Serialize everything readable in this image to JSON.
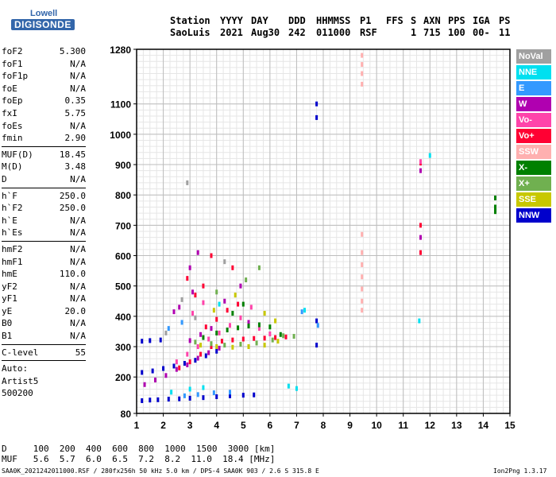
{
  "logo": {
    "line1": "Lowell",
    "line2": "DIGISONDE"
  },
  "header": {
    "col1_label": "Station",
    "col1_value": "SaoLuis",
    "col2_label": "YYYY",
    "col2_value": "2021",
    "col3_label": "DAY",
    "col3_value": "Aug30",
    "col4_label": "DDD",
    "col4_value": "242",
    "col5_label": "HHMMSS",
    "col5_value": "011000",
    "col6_label": "P1",
    "col6_value": "RSF",
    "col7_label": "FFS",
    "col7_value": "",
    "col8_label": "S",
    "col8_value": "1",
    "col9_label": "AXN",
    "col9_value": "715",
    "col10_label": "PPS",
    "col10_value": "100",
    "col11_label": "IGA",
    "col11_value": "00-",
    "col12_label": "PS",
    "col12_value": "11"
  },
  "params": {
    "group1": [
      {
        "name": "foF2",
        "value": "5.300"
      },
      {
        "name": "foF1",
        "value": "N/A"
      },
      {
        "name": "foF1p",
        "value": "N/A"
      },
      {
        "name": "foE",
        "value": "N/A"
      },
      {
        "name": "foEp",
        "value": "0.35"
      },
      {
        "name": "fxI",
        "value": "5.75"
      },
      {
        "name": "foEs",
        "value": "N/A"
      },
      {
        "name": "fmin",
        "value": "2.90"
      }
    ],
    "group2": [
      {
        "name": "MUF(D)",
        "value": "18.45"
      },
      {
        "name": "M(D)",
        "value": "3.48"
      },
      {
        "name": "D",
        "value": "N/A"
      }
    ],
    "group3": [
      {
        "name": "h`F",
        "value": "250.0"
      },
      {
        "name": "h`F2",
        "value": "250.0"
      },
      {
        "name": "h`E",
        "value": "N/A"
      },
      {
        "name": "h`Es",
        "value": "N/A"
      }
    ],
    "group4": [
      {
        "name": "hmF2",
        "value": "N/A"
      },
      {
        "name": "hmF1",
        "value": "N/A"
      },
      {
        "name": "hmE",
        "value": "110.0"
      },
      {
        "name": "yF2",
        "value": "N/A"
      },
      {
        "name": "yF1",
        "value": "N/A"
      },
      {
        "name": "yE",
        "value": "20.0"
      },
      {
        "name": "B0",
        "value": "N/A"
      },
      {
        "name": "B1",
        "value": "N/A"
      }
    ],
    "clevel": {
      "name": "C-level",
      "value": "55"
    },
    "auto_lines": [
      "Auto:",
      "Artist5",
      "500200"
    ]
  },
  "legend": [
    {
      "label": "NoVal",
      "color": "#a0a0a0"
    },
    {
      "label": "NNE",
      "color": "#00e0f0"
    },
    {
      "label": "E",
      "color": "#3399ff"
    },
    {
      "label": "W",
      "color": "#b000b0"
    },
    {
      "label": "Vo-",
      "color": "#ff44aa"
    },
    {
      "label": "Vo+",
      "color": "#ff0033"
    },
    {
      "label": "SSW",
      "color": "#ffb0b0"
    },
    {
      "label": "X-",
      "color": "#008000"
    },
    {
      "label": "X+",
      "color": "#70b050"
    },
    {
      "label": "SSE",
      "color": "#c8c800"
    },
    {
      "label": "NNW",
      "color": "#0000cc"
    }
  ],
  "bottom": {
    "d_line": "D     100  200  400  600  800  1000  1500  3000 [km]",
    "muf_line": "MUF   5.6  5.7  6.0  6.5  7.2  8.2  11.0  18.4 [MHz]"
  },
  "footer": {
    "left": "SAA0K_2021242011000.RSF / 280fx256h 50 kHz 5.0 km / DPS-4 SAA0K 903 / 2.6 S 315.8 E",
    "right": "Ion2Png 1.3.17"
  },
  "chart_data": {
    "type": "scatter",
    "xlim": [
      1,
      15
    ],
    "ylim": [
      80,
      1280
    ],
    "xticks": [
      1,
      2,
      3,
      4,
      5,
      6,
      7,
      8,
      9,
      10,
      11,
      12,
      13,
      14,
      15
    ],
    "yticks": [
      80,
      200,
      300,
      400,
      500,
      600,
      700,
      800,
      900,
      1000,
      1100,
      1280
    ],
    "grid": true,
    "series": [
      {
        "color": "#0000cc",
        "points": [
          [
            1.2,
            122
          ],
          [
            1.5,
            124
          ],
          [
            1.8,
            125
          ],
          [
            2.2,
            127
          ],
          [
            2.6,
            128
          ],
          [
            3.0,
            130
          ],
          [
            3.5,
            132
          ],
          [
            4.0,
            135
          ],
          [
            4.5,
            138
          ],
          [
            5.0,
            140
          ],
          [
            5.4,
            141
          ],
          [
            1.2,
            215
          ],
          [
            1.6,
            220
          ],
          [
            2.0,
            228
          ],
          [
            2.4,
            236
          ],
          [
            2.8,
            245
          ],
          [
            3.2,
            255
          ],
          [
            3.6,
            270
          ],
          [
            4.0,
            285
          ],
          [
            1.2,
            318
          ],
          [
            1.5,
            320
          ],
          [
            1.9,
            322
          ],
          [
            7.75,
            1100
          ],
          [
            7.75,
            1055
          ],
          [
            7.75,
            385
          ],
          [
            7.75,
            305
          ]
        ]
      },
      {
        "color": "#b000b0",
        "points": [
          [
            1.3,
            175
          ],
          [
            1.7,
            190
          ],
          [
            2.1,
            205
          ],
          [
            2.5,
            225
          ],
          [
            2.9,
            240
          ],
          [
            3.3,
            262
          ],
          [
            3.7,
            280
          ],
          [
            4.1,
            295
          ],
          [
            3.0,
            320
          ],
          [
            3.4,
            340
          ],
          [
            3.8,
            360
          ],
          [
            2.4,
            415
          ],
          [
            2.6,
            430
          ],
          [
            3.1,
            480
          ],
          [
            3.0,
            560
          ],
          [
            3.3,
            610
          ],
          [
            4.9,
            500
          ],
          [
            4.3,
            450
          ],
          [
            5.2,
            380
          ],
          [
            11.65,
            880
          ],
          [
            11.65,
            660
          ]
        ]
      },
      {
        "color": "#ff0033",
        "points": [
          [
            2.6,
            230
          ],
          [
            3.0,
            250
          ],
          [
            3.4,
            275
          ],
          [
            3.8,
            300
          ],
          [
            4.2,
            318
          ],
          [
            4.6,
            322
          ],
          [
            5.0,
            325
          ],
          [
            5.4,
            327
          ],
          [
            5.8,
            328
          ],
          [
            6.2,
            330
          ],
          [
            6.6,
            332
          ],
          [
            3.6,
            365
          ],
          [
            4.0,
            390
          ],
          [
            4.4,
            420
          ],
          [
            4.8,
            440
          ],
          [
            3.2,
            470
          ],
          [
            3.5,
            500
          ],
          [
            2.9,
            525
          ],
          [
            4.6,
            560
          ],
          [
            3.8,
            600
          ],
          [
            11.65,
            905
          ],
          [
            11.65,
            700
          ],
          [
            11.65,
            610
          ]
        ]
      },
      {
        "color": "#ff44aa",
        "points": [
          [
            2.5,
            250
          ],
          [
            2.9,
            275
          ],
          [
            3.3,
            300
          ],
          [
            3.7,
            325
          ],
          [
            4.1,
            345
          ],
          [
            4.5,
            370
          ],
          [
            4.9,
            395
          ],
          [
            5.3,
            430
          ],
          [
            3.1,
            410
          ],
          [
            3.5,
            445
          ],
          [
            5.6,
            360
          ],
          [
            6.0,
            342
          ],
          [
            11.65,
            910
          ]
        ]
      },
      {
        "color": "#008000",
        "points": [
          [
            3.5,
            330
          ],
          [
            4.0,
            345
          ],
          [
            4.4,
            355
          ],
          [
            4.8,
            362
          ],
          [
            5.2,
            368
          ],
          [
            5.6,
            372
          ],
          [
            6.0,
            365
          ],
          [
            6.4,
            340
          ],
          [
            4.6,
            410
          ],
          [
            5.0,
            440
          ],
          [
            14.45,
            790
          ],
          [
            14.45,
            760
          ],
          [
            14.45,
            745
          ]
        ]
      },
      {
        "color": "#70b050",
        "points": [
          [
            3.2,
            315
          ],
          [
            3.8,
            310
          ],
          [
            4.3,
            305
          ],
          [
            4.9,
            308
          ],
          [
            5.5,
            312
          ],
          [
            6.1,
            322
          ],
          [
            6.5,
            336
          ],
          [
            6.9,
            334
          ],
          [
            4.0,
            480
          ],
          [
            5.1,
            520
          ],
          [
            5.6,
            560
          ]
        ]
      },
      {
        "color": "#c8c800",
        "points": [
          [
            3.4,
            305
          ],
          [
            4.0,
            300
          ],
          [
            4.6,
            298
          ],
          [
            5.2,
            300
          ],
          [
            5.8,
            305
          ],
          [
            6.3,
            318
          ],
          [
            3.9,
            420
          ],
          [
            4.7,
            470
          ],
          [
            5.8,
            410
          ],
          [
            6.2,
            385
          ]
        ]
      },
      {
        "color": "#00e0f0",
        "points": [
          [
            2.3,
            150
          ],
          [
            3.0,
            160
          ],
          [
            3.5,
            165
          ],
          [
            6.7,
            170
          ],
          [
            7.0,
            162
          ],
          [
            7.3,
            420
          ],
          [
            12.0,
            930
          ],
          [
            11.6,
            385
          ],
          [
            4.1,
            440
          ]
        ]
      },
      {
        "color": "#3399ff",
        "points": [
          [
            2.8,
            138
          ],
          [
            3.3,
            142
          ],
          [
            3.9,
            148
          ],
          [
            4.5,
            150
          ],
          [
            2.2,
            360
          ],
          [
            2.7,
            380
          ],
          [
            7.2,
            415
          ],
          [
            7.8,
            370
          ]
        ]
      },
      {
        "color": "#ffb0b0",
        "points": [
          [
            9.45,
            1260
          ],
          [
            9.45,
            1230
          ],
          [
            9.45,
            1200
          ],
          [
            9.45,
            1165
          ],
          [
            9.45,
            670
          ],
          [
            9.45,
            610
          ],
          [
            9.45,
            570
          ],
          [
            9.45,
            530
          ],
          [
            9.45,
            490
          ],
          [
            9.45,
            450
          ],
          [
            9.45,
            420
          ]
        ]
      },
      {
        "color": "#a0a0a0",
        "points": [
          [
            2.1,
            345
          ],
          [
            3.2,
            395
          ],
          [
            2.7,
            455
          ],
          [
            4.3,
            580
          ],
          [
            2.9,
            840
          ]
        ]
      }
    ]
  }
}
